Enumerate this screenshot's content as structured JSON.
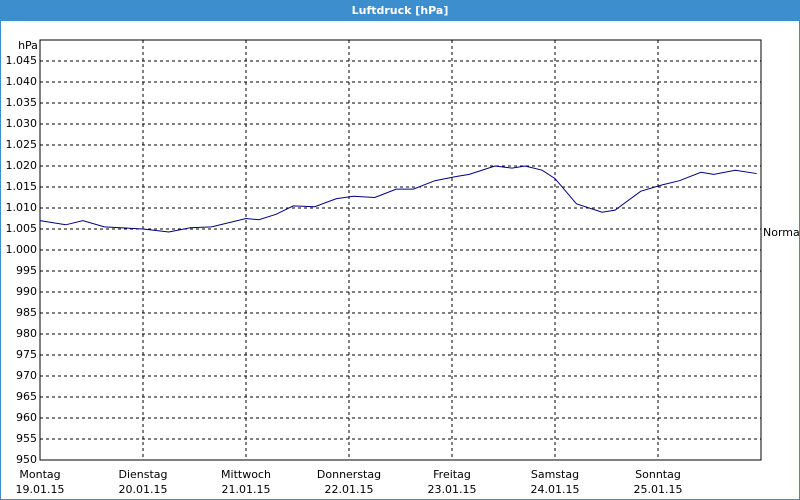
{
  "chart_data": {
    "type": "line",
    "title": "Luftdruck [hPa]",
    "y_unit": "hPa",
    "x": [
      0,
      6,
      10,
      15,
      24,
      30,
      35,
      40,
      48,
      51,
      55,
      59,
      64,
      69,
      73,
      78,
      83,
      87,
      92,
      97,
      100,
      106,
      110,
      113,
      117,
      120,
      125,
      131,
      134,
      140,
      145,
      149,
      154,
      157,
      162,
      167
    ],
    "series": [
      {
        "name": "Luftdruck",
        "color": "#000080",
        "values": [
          1007,
          1006,
          1007,
          1005.5,
          1005,
          1004.3,
          1005.3,
          1005.5,
          1007.5,
          1007.2,
          1008.5,
          1010.5,
          1010.3,
          1012.2,
          1012.8,
          1012.5,
          1014.5,
          1014.5,
          1016.5,
          1017.5,
          1018,
          1020,
          1019.5,
          1020,
          1019,
          1017,
          1011,
          1009,
          1009.5,
          1014,
          1015.5,
          1016.5,
          1018.5,
          1018,
          1019,
          1018.2
        ]
      }
    ],
    "xlim": [
      0,
      168
    ],
    "xticks": [
      {
        "value": 0,
        "label": [
          "Montag",
          "19.01.15"
        ]
      },
      {
        "value": 24,
        "label": [
          "Dienstag",
          "20.01.15"
        ]
      },
      {
        "value": 48,
        "label": [
          "Mittwoch",
          "21.01.15"
        ]
      },
      {
        "value": 72,
        "label": [
          "Donnerstag",
          "22.01.15"
        ]
      },
      {
        "value": 96,
        "label": [
          "Freitag",
          "23.01.15"
        ]
      },
      {
        "value": 120,
        "label": [
          "Samstag",
          "24.01.15"
        ]
      },
      {
        "value": 144,
        "label": [
          "Sonntag",
          "25.01.15"
        ]
      }
    ],
    "ylim": [
      950,
      1050
    ],
    "yticks": [
      950,
      955,
      960,
      965,
      970,
      975,
      980,
      985,
      990,
      995,
      {
        "value": 1000,
        "label": "1.000"
      },
      {
        "value": 1005,
        "label": "1.005"
      },
      {
        "value": 1010,
        "label": "1.010"
      },
      {
        "value": 1015,
        "label": "1.015"
      },
      {
        "value": 1020,
        "label": "1.020"
      },
      {
        "value": 1025,
        "label": "1.025"
      },
      {
        "value": 1030,
        "label": "1.030"
      },
      {
        "value": 1035,
        "label": "1.035"
      },
      {
        "value": 1040,
        "label": "1.040"
      },
      {
        "value": 1045,
        "label": "1.045"
      }
    ],
    "reference": {
      "text": "Normal",
      "value": 1004
    },
    "grid": true
  }
}
